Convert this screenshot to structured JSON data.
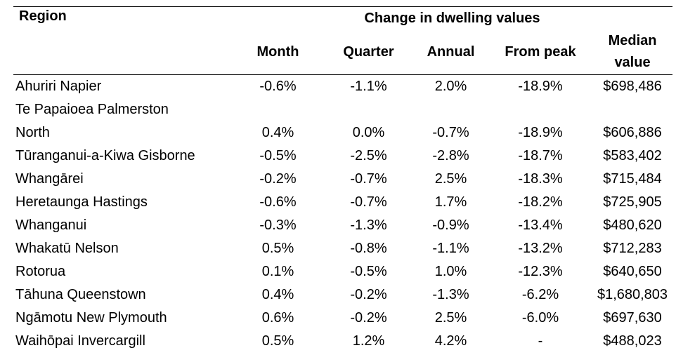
{
  "header": {
    "group_label": "Change in dwelling values",
    "region_label": "Region",
    "month_label": "Month",
    "quarter_label": "Quarter",
    "annual_label": "Annual",
    "from_peak_label": "From peak",
    "median_label_line1": "Median",
    "median_label_line2": "value"
  },
  "rows": [
    {
      "region": "Ahuriri Napier",
      "month": "-0.6%",
      "quarter": "-1.1%",
      "annual": "2.0%",
      "from_peak": "-18.9%",
      "median": "$698,486"
    },
    {
      "region_line1": "Te Papaioea Palmerston",
      "region": "North",
      "month": "0.4%",
      "quarter": "0.0%",
      "annual": "-0.7%",
      "from_peak": "-18.9%",
      "median": "$606,886"
    },
    {
      "region": "Tūranganui-a-Kiwa Gisborne",
      "month": "-0.5%",
      "quarter": "-2.5%",
      "annual": "-2.8%",
      "from_peak": "-18.7%",
      "median": "$583,402"
    },
    {
      "region": "Whangārei",
      "month": "-0.2%",
      "quarter": "-0.7%",
      "annual": "2.5%",
      "from_peak": "-18.3%",
      "median": "$715,484"
    },
    {
      "region": "Heretaunga Hastings",
      "month": "-0.6%",
      "quarter": "-0.7%",
      "annual": "1.7%",
      "from_peak": "-18.2%",
      "median": "$725,905"
    },
    {
      "region": "Whanganui",
      "month": "-0.3%",
      "quarter": "-1.3%",
      "annual": "-0.9%",
      "from_peak": "-13.4%",
      "median": "$480,620"
    },
    {
      "region": "Whakatū Nelson",
      "month": "0.5%",
      "quarter": "-0.8%",
      "annual": "-1.1%",
      "from_peak": "-13.2%",
      "median": "$712,283"
    },
    {
      "region": "Rotorua",
      "month": "0.1%",
      "quarter": "-0.5%",
      "annual": "1.0%",
      "from_peak": "-12.3%",
      "median": "$640,650"
    },
    {
      "region": "Tāhuna Queenstown",
      "month": "0.4%",
      "quarter": "-0.2%",
      "annual": "-1.3%",
      "from_peak": "-6.2%",
      "median": "$1,680,803"
    },
    {
      "region": "Ngāmotu New Plymouth",
      "month": "0.6%",
      "quarter": "-0.2%",
      "annual": "2.5%",
      "from_peak": "-6.0%",
      "median": "$697,630"
    },
    {
      "region": "Waihōpai Invercargill",
      "month": "0.5%",
      "quarter": "1.2%",
      "annual": "4.2%",
      "from_peak": "-",
      "median": "$488,023"
    }
  ]
}
